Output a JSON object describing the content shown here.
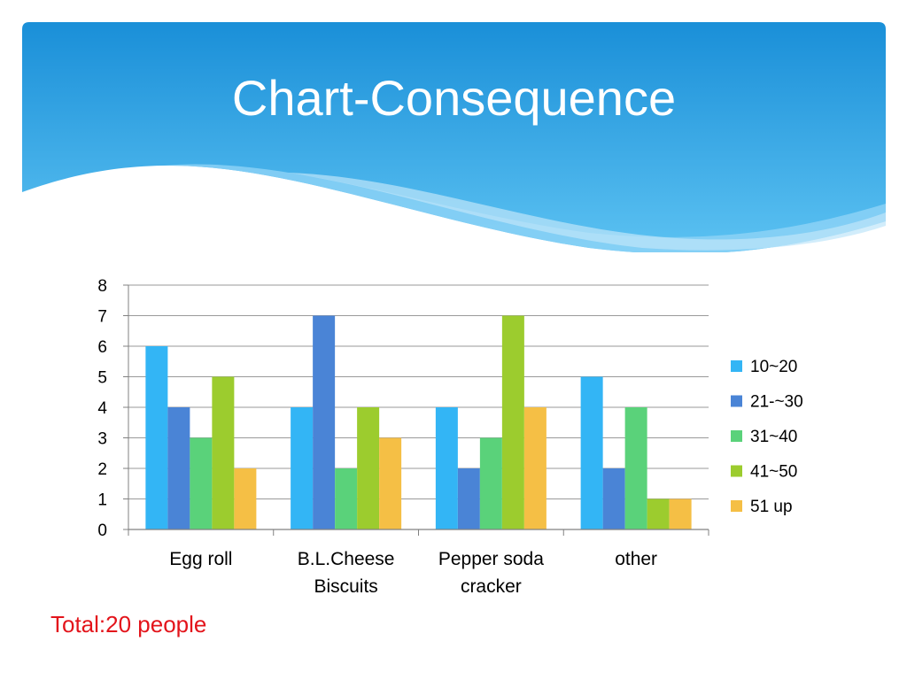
{
  "slide": {
    "title": "Chart-Consequence",
    "note": "Total:20 people"
  },
  "colors": {
    "header_top": "#1a8fd8",
    "header_bottom": "#5cc2f2",
    "note": "#e3141b"
  },
  "chart_data": {
    "type": "bar",
    "title": "",
    "xlabel": "",
    "ylabel": "",
    "ylim": [
      0,
      8
    ],
    "yticks": [
      "0",
      "1",
      "2",
      "3",
      "4",
      "5",
      "6",
      "7",
      "8"
    ],
    "grid": true,
    "legend_position": "right",
    "categories": [
      [
        "Egg roll"
      ],
      [
        "B.L.Cheese",
        "Biscuits"
      ],
      [
        "Pepper soda",
        "cracker"
      ],
      [
        "other"
      ]
    ],
    "series": [
      {
        "name": "10~20",
        "color": "#33b5f5",
        "values": [
          6,
          4,
          4,
          5
        ]
      },
      {
        "name": "21-~30",
        "color": "#4a84d6",
        "values": [
          4,
          7,
          2,
          2
        ]
      },
      {
        "name": "31~40",
        "color": "#5ad27a",
        "values": [
          3,
          2,
          3,
          4
        ]
      },
      {
        "name": "41~50",
        "color": "#9ccc2e",
        "values": [
          5,
          4,
          7,
          1
        ]
      },
      {
        "name": "51 up",
        "color": "#f5bf45",
        "values": [
          2,
          3,
          4,
          1
        ]
      }
    ]
  }
}
